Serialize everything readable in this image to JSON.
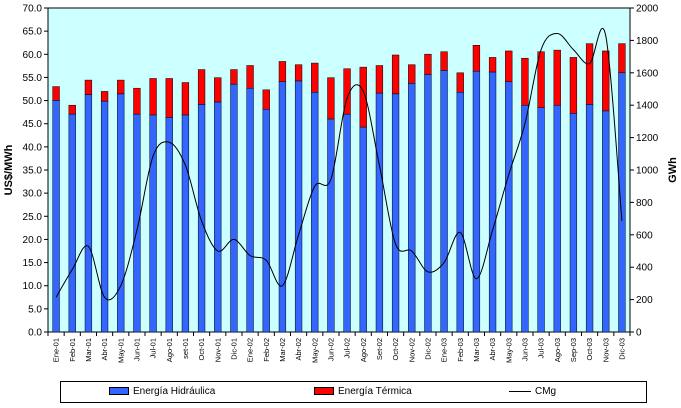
{
  "chart_data": {
    "type": "bar",
    "stacked": true,
    "categories": [
      "Ene-01",
      "Feb-01",
      "Mar-01",
      "Abr-01",
      "May-01",
      "Jun-01",
      "Jul-01",
      "Ago-01",
      "set-01",
      "Oct-01",
      "Nov-01",
      "Dic-01",
      "Ene-02",
      "Feb-02",
      "Mar-02",
      "Abr-02",
      "May-02",
      "Jun-02",
      "Jul-02",
      "Ago-02",
      "Set-02",
      "Oct-02",
      "Nov-02",
      "Dic-02",
      "Ene-03",
      "Feb-03",
      "Mar-03",
      "Abr-03",
      "May-03",
      "Jun-03",
      "Jul-03",
      "Ago-03",
      "Sep-03",
      "Oct-03",
      "Nov-03",
      "Dic-03"
    ],
    "ylabel": "US$/MWh",
    "y2label": "GWh",
    "ylim": [
      0,
      70
    ],
    "y2lim": [
      0,
      2000
    ],
    "yticks": [
      "0.0",
      "5.0",
      "10.0",
      "15.0",
      "20.0",
      "25.0",
      "30.0",
      "35.0",
      "40.0",
      "45.0",
      "50.0",
      "55.0",
      "60.0",
      "65.0",
      "70.0"
    ],
    "y2ticks": [
      "0",
      "200",
      "400",
      "600",
      "800",
      "1000",
      "1200",
      "1400",
      "1600",
      "1800",
      "2000"
    ],
    "grid": false,
    "legend_position": "bottom",
    "colors": {
      "plot_background": "#ccffff",
      "hidraulica": "#3366ff",
      "termica": "#ff0000",
      "cmg": "#000000"
    },
    "series": [
      {
        "name": "Energía Hidráulica",
        "kind": "bar",
        "axis": "right",
        "values": [
          1430,
          1345,
          1465,
          1425,
          1470,
          1345,
          1340,
          1325,
          1340,
          1405,
          1420,
          1530,
          1505,
          1375,
          1545,
          1550,
          1480,
          1315,
          1345,
          1265,
          1475,
          1470,
          1535,
          1590,
          1615,
          1480,
          1610,
          1605,
          1545,
          1400,
          1385,
          1400,
          1350,
          1405,
          1365,
          1600
        ]
      },
      {
        "name": "Energía Térmica",
        "kind": "bar",
        "axis": "right",
        "values": [
          85,
          55,
          90,
          60,
          85,
          160,
          225,
          240,
          200,
          215,
          150,
          90,
          140,
          120,
          125,
          100,
          180,
          255,
          280,
          370,
          170,
          240,
          115,
          125,
          115,
          120,
          160,
          90,
          190,
          290,
          345,
          340,
          345,
          375,
          370,
          180
        ]
      },
      {
        "name": "CMg",
        "kind": "line",
        "axis": "left",
        "values": [
          7.5,
          13.5,
          18.5,
          7.5,
          10.0,
          22.0,
          38.0,
          41.0,
          36.0,
          24.0,
          17.5,
          20.0,
          16.5,
          15.5,
          10.0,
          21.0,
          31.5,
          33.0,
          50.5,
          52.0,
          36.0,
          19.0,
          17.5,
          13.0,
          15.0,
          21.5,
          11.5,
          22.0,
          34.0,
          45.0,
          61.0,
          64.5,
          61.0,
          58.0,
          64.0,
          24.0
        ]
      }
    ]
  }
}
